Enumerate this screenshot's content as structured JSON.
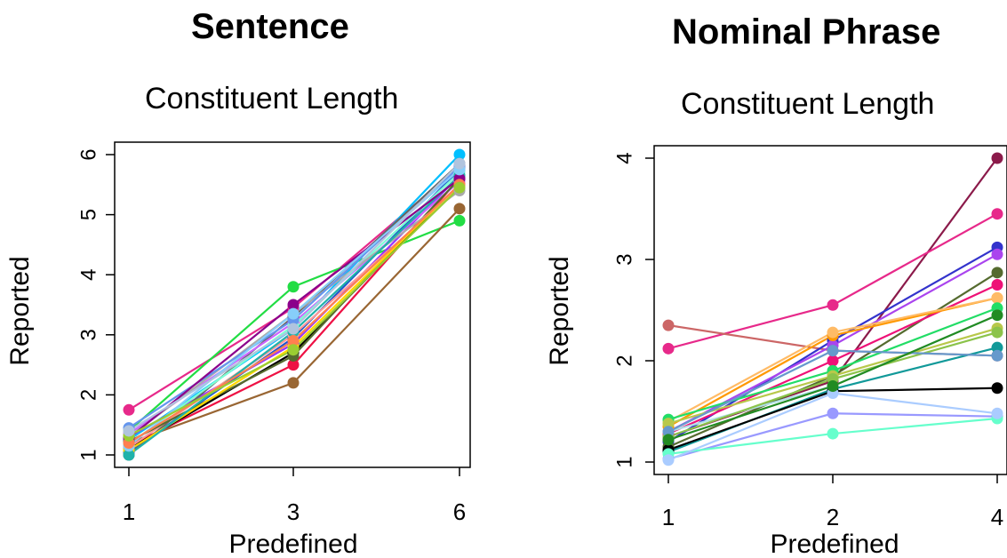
{
  "chart_data": [
    {
      "type": "line",
      "title": "Sentence",
      "subtitle": "Constituent Length",
      "xlabel": "Predefined",
      "ylabel": "Reported",
      "x_categories": [
        "1",
        "3",
        "6"
      ],
      "y_ticks": [
        "1",
        "2",
        "3",
        "4",
        "5",
        "6"
      ],
      "ylim": [
        1,
        6
      ],
      "grid": false,
      "series": [
        {
          "color": "#e7298a",
          "values": [
            1.75,
            3.45,
            5.8
          ]
        },
        {
          "color": "#22dd44",
          "values": [
            1.4,
            3.8,
            4.9
          ]
        },
        {
          "color": "#996633",
          "values": [
            1.2,
            2.2,
            5.1
          ]
        },
        {
          "color": "#ee1144",
          "values": [
            1.15,
            2.5,
            5.6
          ]
        },
        {
          "color": "#00bfff",
          "values": [
            1.25,
            3.1,
            6.0
          ]
        },
        {
          "color": "#9933ff",
          "values": [
            1.3,
            2.85,
            5.65
          ]
        },
        {
          "color": "#000000",
          "values": [
            1.1,
            2.7,
            5.5
          ]
        },
        {
          "color": "#2255cc",
          "values": [
            1.05,
            2.95,
            5.75
          ]
        },
        {
          "color": "#666666",
          "values": [
            1.0,
            3.3,
            5.85
          ]
        },
        {
          "color": "#cc66ff",
          "values": [
            1.35,
            3.2,
            5.55
          ]
        },
        {
          "color": "#ff9999",
          "values": [
            1.12,
            3.0,
            5.45
          ]
        },
        {
          "color": "#7fffd4",
          "values": [
            1.18,
            3.15,
            5.7
          ]
        },
        {
          "color": "#556b2f",
          "values": [
            1.22,
            2.65,
            5.6
          ]
        },
        {
          "color": "#aaaaaa",
          "values": [
            1.3,
            3.35,
            5.4
          ]
        },
        {
          "color": "#6495ed",
          "values": [
            1.45,
            3.25,
            5.8
          ]
        },
        {
          "color": "#ffd700",
          "values": [
            1.08,
            2.8,
            5.5
          ]
        },
        {
          "color": "#20b2aa",
          "values": [
            1.0,
            3.05,
            5.65
          ]
        },
        {
          "color": "#8b008b",
          "values": [
            1.28,
            3.5,
            5.6
          ]
        },
        {
          "color": "#87cefa",
          "values": [
            1.15,
            3.35,
            5.75
          ]
        },
        {
          "color": "#ff7f50",
          "values": [
            1.2,
            2.9,
            5.5
          ]
        },
        {
          "color": "#9acd32",
          "values": [
            1.32,
            2.75,
            5.45
          ]
        },
        {
          "color": "#b0c4de",
          "values": [
            1.4,
            3.1,
            5.85
          ]
        }
      ]
    },
    {
      "type": "line",
      "title": "Nominal Phrase",
      "subtitle": "Constituent Length",
      "xlabel": "Predefined",
      "ylabel": "Reported",
      "x_categories": [
        "1",
        "2",
        "4"
      ],
      "y_ticks": [
        "1",
        "2",
        "3",
        "4"
      ],
      "ylim": [
        1,
        4
      ],
      "grid": false,
      "series": [
        {
          "color": "#8b1a4a",
          "values": [
            1.25,
            1.8,
            4.0
          ]
        },
        {
          "color": "#e7298a",
          "values": [
            2.12,
            2.55,
            3.45
          ]
        },
        {
          "color": "#cc6666",
          "values": [
            2.35,
            2.1,
            2.05
          ]
        },
        {
          "color": "#3333cc",
          "values": [
            1.2,
            2.2,
            3.12
          ]
        },
        {
          "color": "#aa44ee",
          "values": [
            1.3,
            2.15,
            3.05
          ]
        },
        {
          "color": "#556b2f",
          "values": [
            1.15,
            1.85,
            2.87
          ]
        },
        {
          "color": "#ee1177",
          "values": [
            1.28,
            2.0,
            2.75
          ]
        },
        {
          "color": "#ff9900",
          "values": [
            1.35,
            2.25,
            2.62
          ]
        },
        {
          "color": "#ffbb66",
          "values": [
            1.4,
            2.28,
            2.62
          ]
        },
        {
          "color": "#22dd66",
          "values": [
            1.42,
            1.9,
            2.52
          ]
        },
        {
          "color": "#b0e0e6",
          "values": [
            1.3,
            1.75,
            2.45
          ]
        },
        {
          "color": "#b8c84a",
          "values": [
            1.38,
            1.85,
            2.32
          ]
        },
        {
          "color": "#8bc34a",
          "values": [
            1.25,
            1.82,
            2.28
          ]
        },
        {
          "color": "#119999",
          "values": [
            1.1,
            1.72,
            2.13
          ]
        },
        {
          "color": "#6699cc",
          "values": [
            1.3,
            2.1,
            2.05
          ]
        },
        {
          "color": "#000000",
          "values": [
            1.12,
            1.7,
            1.73
          ]
        },
        {
          "color": "#9999ff",
          "values": [
            1.03,
            1.48,
            1.45
          ]
        },
        {
          "color": "#66ffcc",
          "values": [
            1.08,
            1.28,
            1.43
          ]
        },
        {
          "color": "#aaccff",
          "values": [
            1.02,
            1.68,
            1.48
          ]
        },
        {
          "color": "#228b22",
          "values": [
            1.22,
            1.75,
            2.45
          ]
        }
      ]
    }
  ]
}
